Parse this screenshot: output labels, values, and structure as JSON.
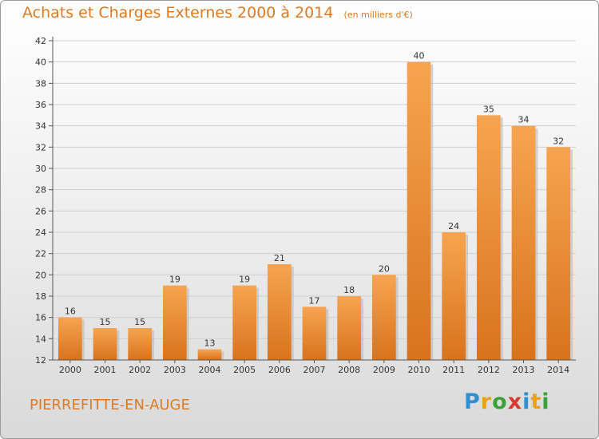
{
  "header": {
    "title": "Achats et Charges Externes 2000 à 2014",
    "unit_note": "(en milliers d'€)"
  },
  "footer": {
    "commune": "PIERREFITTE-EN-AUGE",
    "logo": {
      "letters": [
        "P",
        "r",
        "o",
        "x",
        "i",
        "t",
        "i"
      ],
      "colors": [
        "#2f8fd0",
        "#e8a21c",
        "#3aa23a",
        "#d63a2e",
        "#2f8fd0",
        "#e8a21c",
        "#3aa23a"
      ]
    }
  },
  "chart_data": {
    "type": "bar",
    "categories": [
      "2000",
      "2001",
      "2002",
      "2003",
      "2004",
      "2005",
      "2006",
      "2007",
      "2008",
      "2009",
      "2010",
      "2011",
      "2012",
      "2013",
      "2014"
    ],
    "values": [
      16,
      15,
      15,
      19,
      13,
      19,
      21,
      17,
      18,
      20,
      40,
      24,
      35,
      34,
      32
    ],
    "data_labels": [
      "16",
      "15",
      "15",
      "19",
      "13",
      "19",
      "21",
      "17",
      "18",
      "20",
      "40",
      "24",
      "35",
      "34",
      "32"
    ],
    "ylim": [
      12,
      42
    ],
    "yticks": [
      12,
      14,
      16,
      18,
      20,
      22,
      24,
      26,
      28,
      30,
      32,
      34,
      36,
      38,
      40,
      42
    ],
    "ytick_labels": [
      "12",
      "14",
      "16",
      "18",
      "20",
      "22",
      "24",
      "26",
      "28",
      "30",
      "32",
      "34",
      "36",
      "38",
      "40",
      "42"
    ],
    "grid": true,
    "bar_color": "#f0952e"
  }
}
